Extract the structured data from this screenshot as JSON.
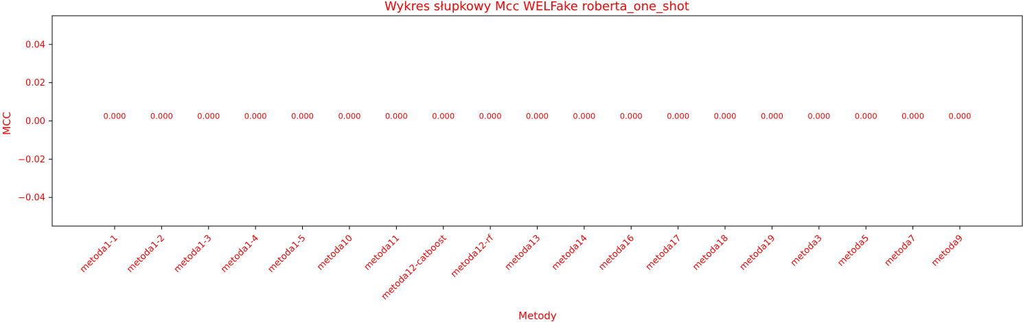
{
  "chart_data": {
    "type": "bar",
    "title": "Wykres słupkowy Mcc WELFake roberta_one_shot",
    "xlabel": "Metody",
    "ylabel": "MCC",
    "categories": [
      "metoda1-1",
      "metoda1-2",
      "metoda1-3",
      "metoda1-4",
      "metoda1-5",
      "metoda10",
      "metoda11",
      "metoda12-catboost",
      "metoda12-rf",
      "metoda13",
      "metoda14",
      "metoda16",
      "metoda17",
      "metoda18",
      "metoda19",
      "metoda3",
      "metoda5",
      "metoda7",
      "metoda9"
    ],
    "values": [
      0,
      0,
      0,
      0,
      0,
      0,
      0,
      0,
      0,
      0,
      0,
      0,
      0,
      0,
      0,
      0,
      0,
      0,
      0
    ],
    "data_labels": [
      "0.000",
      "0.000",
      "0.000",
      "0.000",
      "0.000",
      "0.000",
      "0.000",
      "0.000",
      "0.000",
      "0.000",
      "0.000",
      "0.000",
      "0.000",
      "0.000",
      "0.000",
      "0.000",
      "0.000",
      "0.000",
      "0.000"
    ],
    "ylim": [
      -0.055,
      0.055
    ],
    "yticks": [
      -0.04,
      -0.02,
      0.0,
      0.02,
      0.04
    ],
    "ytick_labels": [
      "−0.04",
      "−0.02",
      "0.00",
      "0.02",
      "0.04"
    ],
    "grid": false,
    "colors": {
      "text": "#ff0000",
      "axis": "#000000",
      "bar": "#1f77b4"
    }
  }
}
